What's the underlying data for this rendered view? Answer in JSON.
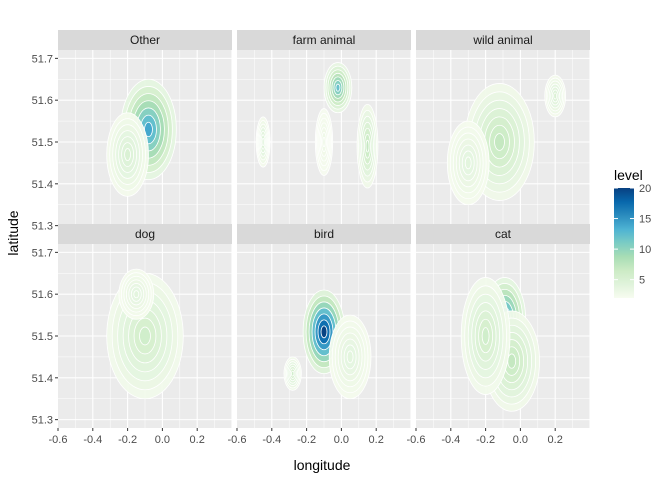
{
  "chart_data": {
    "type": "faceted-density-contour",
    "xlabel": "longitude",
    "ylabel": "latitude",
    "xlim": [
      -0.6,
      0.4
    ],
    "ylim": [
      51.28,
      51.72
    ],
    "x_ticks": [
      -0.6,
      -0.4,
      -0.2,
      0.0,
      0.2
    ],
    "x_tick_labels": [
      "-0.6",
      "-0.4",
      "-0.2",
      "0.0",
      "0.2"
    ],
    "y_ticks": [
      51.3,
      51.4,
      51.5,
      51.6,
      51.7
    ],
    "y_tick_labels": [
      "51.3",
      "51.4",
      "51.5",
      "51.6",
      "51.7"
    ],
    "grid": true,
    "legend": {
      "title": "level",
      "position": "right",
      "range": [
        2,
        20
      ],
      "ticks": [
        5,
        10,
        15,
        20
      ],
      "tick_labels": [
        "5",
        "10",
        "15",
        "20"
      ],
      "colors": [
        "#f7fcf0",
        "#e0f3db",
        "#ccebc5",
        "#a8ddb5",
        "#7bccc4",
        "#4eb3d3",
        "#2b8cbe",
        "#0868ac",
        "#084081"
      ]
    },
    "panels": [
      {
        "label": "Other",
        "peaks": [
          {
            "x": -0.08,
            "y": 51.53,
            "level": 14,
            "rx": 0.16,
            "ry": 0.12
          },
          {
            "x": -0.2,
            "y": 51.47,
            "level": 5,
            "rx": 0.12,
            "ry": 0.1
          }
        ]
      },
      {
        "label": "farm animal",
        "peaks": [
          {
            "x": -0.02,
            "y": 51.63,
            "level": 12,
            "rx": 0.08,
            "ry": 0.06
          },
          {
            "x": 0.15,
            "y": 51.49,
            "level": 7,
            "rx": 0.06,
            "ry": 0.1
          },
          {
            "x": -0.45,
            "y": 51.5,
            "level": 5,
            "rx": 0.04,
            "ry": 0.06
          },
          {
            "x": -0.1,
            "y": 51.5,
            "level": 3,
            "rx": 0.05,
            "ry": 0.08
          }
        ]
      },
      {
        "label": "wild animal",
        "peaks": [
          {
            "x": -0.12,
            "y": 51.5,
            "level": 7,
            "rx": 0.2,
            "ry": 0.14
          },
          {
            "x": 0.2,
            "y": 51.61,
            "level": 5,
            "rx": 0.06,
            "ry": 0.05
          },
          {
            "x": -0.3,
            "y": 51.45,
            "level": 4,
            "rx": 0.12,
            "ry": 0.1
          }
        ]
      },
      {
        "label": "dog",
        "peaks": [
          {
            "x": -0.1,
            "y": 51.5,
            "level": 6,
            "rx": 0.22,
            "ry": 0.15
          },
          {
            "x": -0.15,
            "y": 51.6,
            "level": 4,
            "rx": 0.1,
            "ry": 0.06
          }
        ]
      },
      {
        "label": "bird",
        "peaks": [
          {
            "x": -0.1,
            "y": 51.51,
            "level": 20,
            "rx": 0.12,
            "ry": 0.1
          },
          {
            "x": -0.28,
            "y": 51.41,
            "level": 6,
            "rx": 0.05,
            "ry": 0.04
          },
          {
            "x": 0.05,
            "y": 51.45,
            "level": 4,
            "rx": 0.12,
            "ry": 0.1
          }
        ]
      },
      {
        "label": "cat",
        "peaks": [
          {
            "x": -0.09,
            "y": 51.54,
            "level": 15,
            "rx": 0.12,
            "ry": 0.1
          },
          {
            "x": -0.05,
            "y": 51.44,
            "level": 7,
            "rx": 0.16,
            "ry": 0.12
          },
          {
            "x": -0.2,
            "y": 51.5,
            "level": 6,
            "rx": 0.14,
            "ry": 0.14
          }
        ]
      }
    ]
  }
}
